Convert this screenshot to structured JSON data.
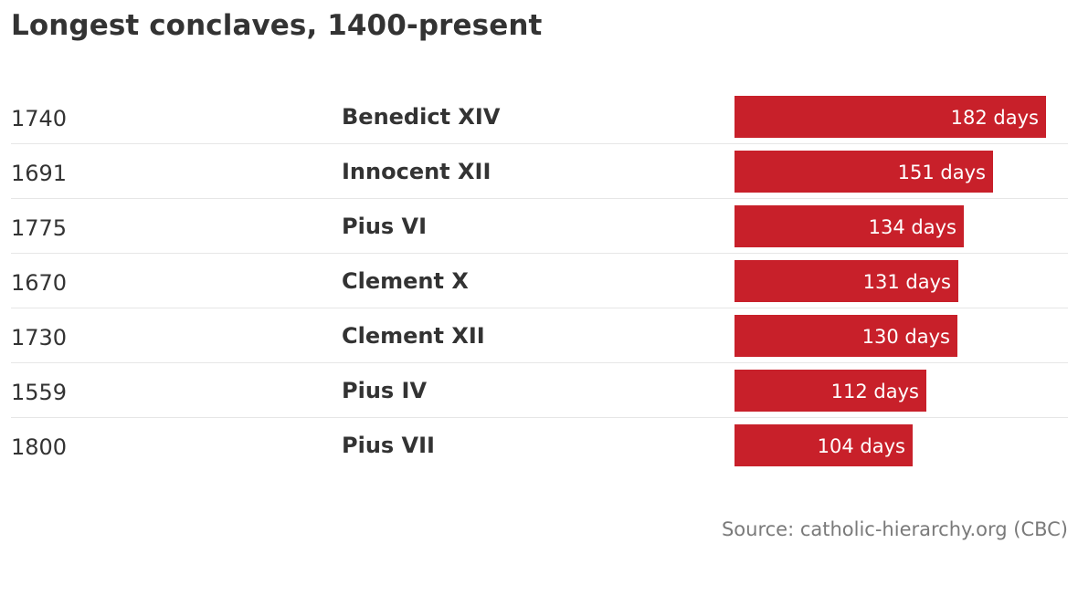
{
  "chart_data": {
    "type": "bar",
    "orientation": "horizontal",
    "title": "Longest conclaves, 1400-present",
    "columns": [
      "year",
      "pope",
      "duration"
    ],
    "rows": [
      {
        "year": "1740",
        "pope": "Benedict XIV",
        "days": 182,
        "label": "182 days"
      },
      {
        "year": "1691",
        "pope": "Innocent XII",
        "days": 151,
        "label": "151 days"
      },
      {
        "year": "1775",
        "pope": "Pius VI",
        "days": 134,
        "label": "134 days"
      },
      {
        "year": "1670",
        "pope": "Clement X",
        "days": 131,
        "label": "131 days"
      },
      {
        "year": "1730",
        "pope": "Clement XII",
        "days": 130,
        "label": "130 days"
      },
      {
        "year": "1559",
        "pope": "Pius IV",
        "days": 112,
        "label": "112 days"
      },
      {
        "year": "1800",
        "pope": "Pius VII",
        "days": 104,
        "label": "104 days"
      }
    ],
    "xlim": [
      0,
      182
    ],
    "bar_color": "#c8202a",
    "grid": false,
    "legend": "none",
    "source": "Source: catholic-hierarchy.org (CBC)"
  }
}
